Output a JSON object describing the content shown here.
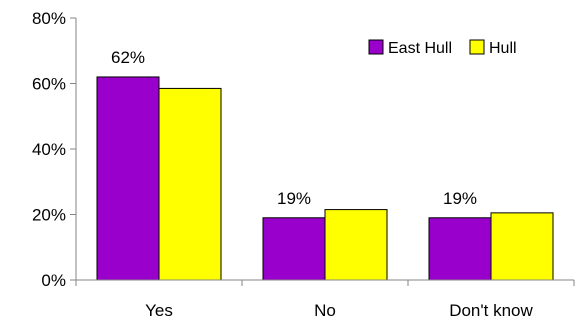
{
  "chart_data": {
    "type": "bar",
    "title": "",
    "xlabel": "",
    "ylabel": "",
    "categories": [
      "Yes",
      "No",
      "Don't know"
    ],
    "series": [
      {
        "name": "East Hull",
        "values": [
          62,
          19,
          19
        ],
        "color": "#9900cc"
      },
      {
        "name": "Hull",
        "values": [
          58.5,
          21.5,
          20.5
        ],
        "color": "#ffff00"
      }
    ],
    "data_labels": [
      "62%",
      "19%",
      "19%"
    ],
    "ylim": [
      0,
      80
    ],
    "yticks": [
      {
        "value": 0,
        "label": "0%"
      },
      {
        "value": 20,
        "label": "20%"
      },
      {
        "value": 40,
        "label": "40%"
      },
      {
        "value": 60,
        "label": "60%"
      },
      {
        "value": 80,
        "label": "80%"
      }
    ],
    "grid": false,
    "legend_position": "top-right"
  }
}
